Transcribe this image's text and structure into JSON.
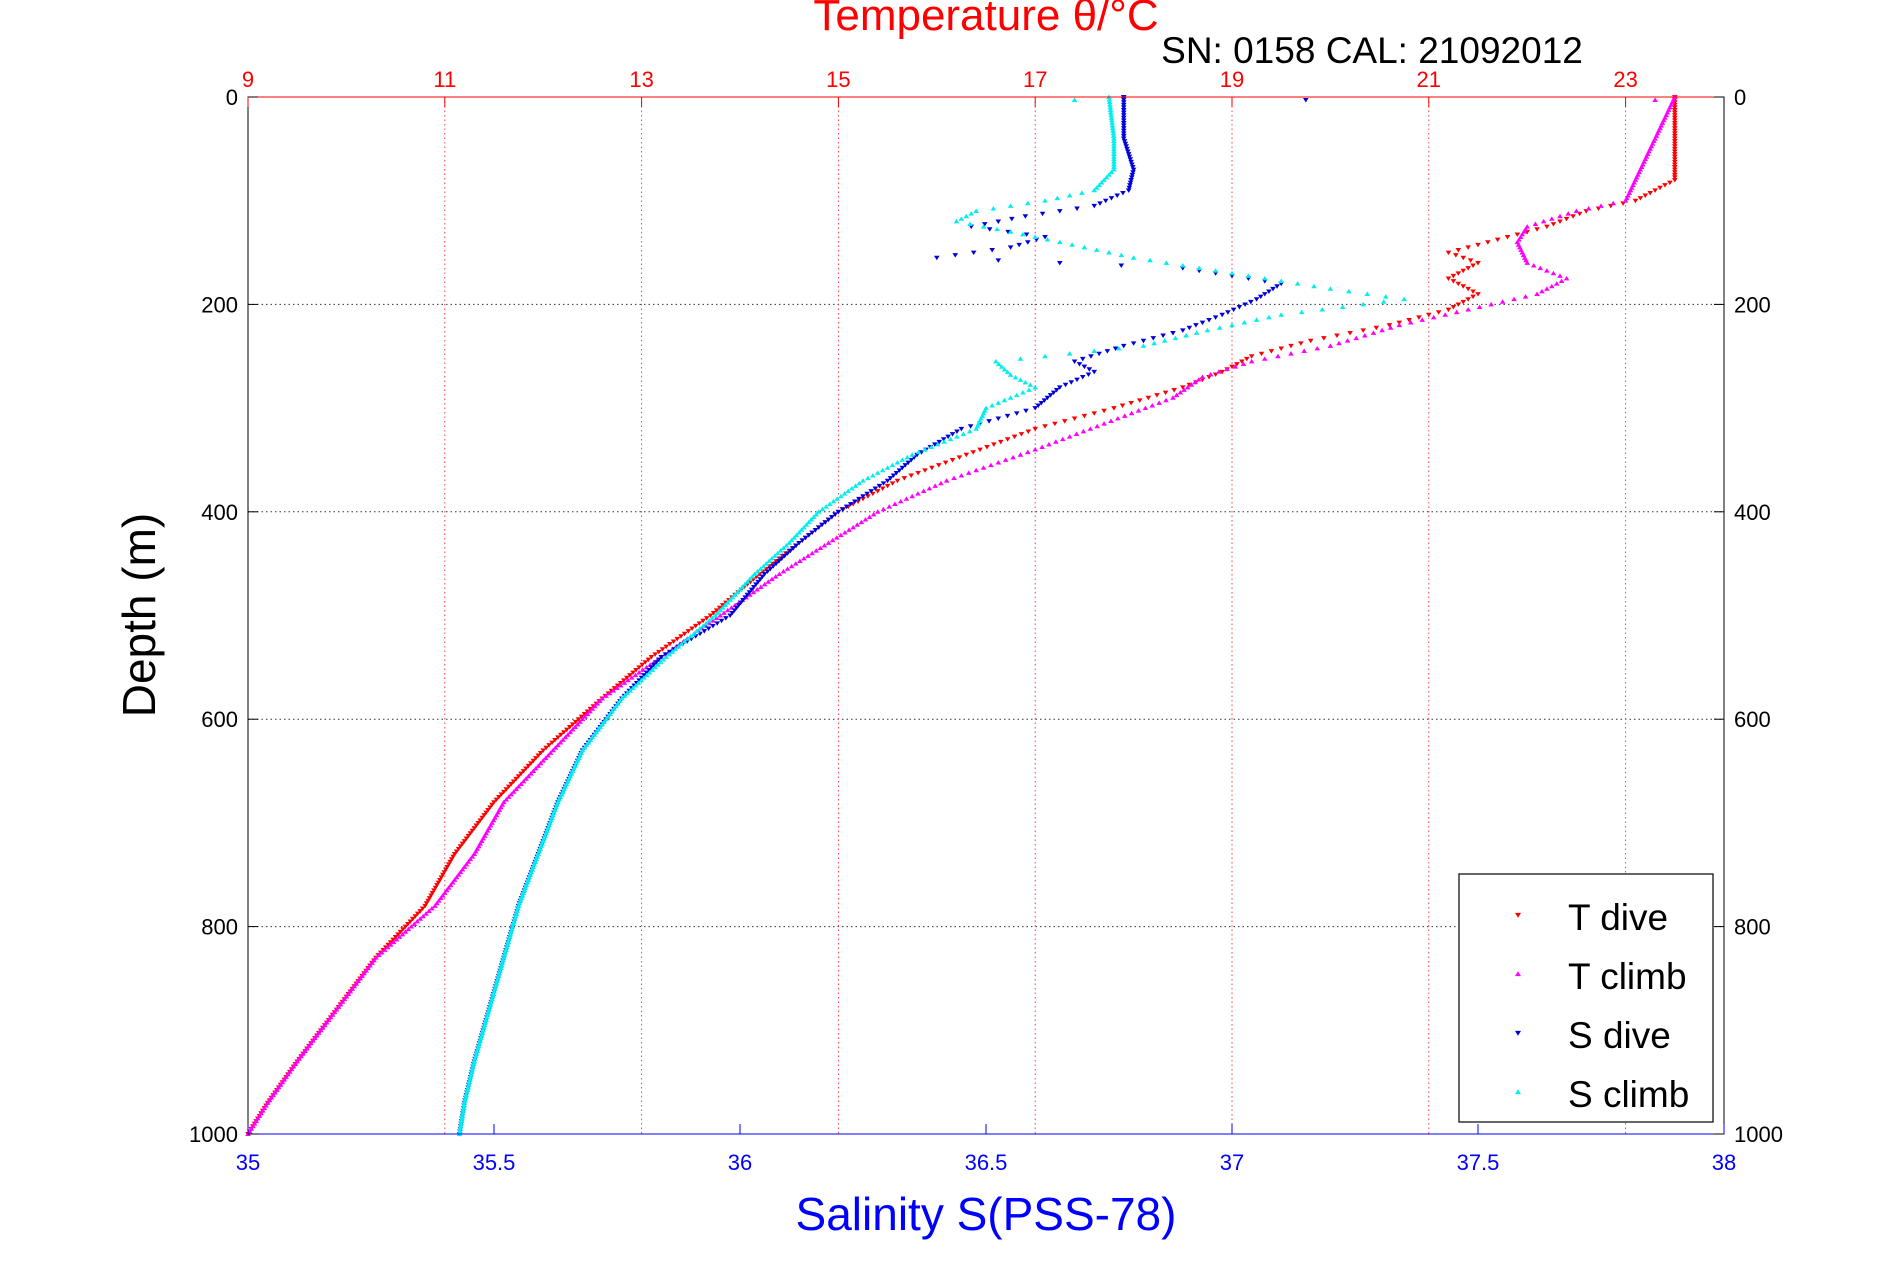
{
  "chart_data": {
    "type": "scatter",
    "title": "Temperature θ/°C",
    "subtitle": "SN: 0158  CAL: 21092012",
    "ylabel": "Depth (m)",
    "xlabel": "Salinity S(PSS-78)",
    "ylim": [
      0,
      1000
    ],
    "y_reversed": true,
    "xlim_salinity": [
      35,
      38
    ],
    "xlim_temperature": [
      9,
      24
    ],
    "grid": true,
    "legend_position": "bottom-right",
    "y_ticks": [
      "0",
      "200",
      "400",
      "600",
      "800",
      "1000"
    ],
    "y_tick_values": [
      0,
      200,
      400,
      600,
      800,
      1000
    ],
    "salinity_ticks": [
      "35",
      "35.5",
      "36",
      "36.5",
      "37",
      "37.5",
      "38"
    ],
    "salinity_tick_values": [
      35,
      35.5,
      36,
      36.5,
      37,
      37.5,
      38
    ],
    "temperature_ticks": [
      "9",
      "11",
      "13",
      "15",
      "17",
      "19",
      "21",
      "23"
    ],
    "temperature_tick_values": [
      9,
      11,
      13,
      15,
      17,
      19,
      21,
      23
    ],
    "colors": {
      "temperature_axis": "#ff0000",
      "salinity_axis": "#0000ff",
      "t_dive": "#ff0000",
      "t_climb": "#ff00ff",
      "s_dive": "#0000dd",
      "s_climb": "#00eeee",
      "grid": "#333333",
      "temp_grid": "#ff4040"
    },
    "series": [
      {
        "name": "T dive",
        "axis": "temperature",
        "marker": "down-triangle",
        "color": "#ff0000",
        "profile": [
          [
            0,
            23.5
          ],
          [
            50,
            23.5
          ],
          [
            80,
            23.5
          ],
          [
            100,
            23.1
          ],
          [
            110,
            22.6
          ],
          [
            125,
            22.2
          ],
          [
            140,
            21.6
          ],
          [
            150,
            21.2
          ],
          [
            160,
            21.5
          ],
          [
            175,
            21.2
          ],
          [
            190,
            21.5
          ],
          [
            205,
            21.2
          ],
          [
            220,
            20.6
          ],
          [
            235,
            19.8
          ],
          [
            250,
            19.2
          ],
          [
            265,
            18.9
          ],
          [
            280,
            18.5
          ],
          [
            300,
            17.8
          ],
          [
            320,
            17.0
          ],
          [
            345,
            16.3
          ],
          [
            370,
            15.6
          ],
          [
            400,
            15.0
          ],
          [
            430,
            14.6
          ],
          [
            460,
            14.2
          ],
          [
            500,
            13.7
          ],
          [
            540,
            13.1
          ],
          [
            580,
            12.6
          ],
          [
            630,
            12.0
          ],
          [
            680,
            11.5
          ],
          [
            730,
            11.1
          ],
          [
            780,
            10.8
          ],
          [
            830,
            10.3
          ],
          [
            880,
            9.9
          ],
          [
            930,
            9.5
          ],
          [
            970,
            9.2
          ],
          [
            1000,
            9.0
          ]
        ]
      },
      {
        "name": "T climb",
        "axis": "temperature",
        "marker": "up-triangle",
        "color": "#ff00ff",
        "profile": [
          [
            0,
            23.5
          ],
          [
            40,
            23.3
          ],
          [
            80,
            23.1
          ],
          [
            100,
            23.0
          ],
          [
            110,
            22.5
          ],
          [
            125,
            22.0
          ],
          [
            140,
            21.9
          ],
          [
            160,
            22.0
          ],
          [
            175,
            22.4
          ],
          [
            190,
            22.1
          ],
          [
            205,
            21.4
          ],
          [
            220,
            20.7
          ],
          [
            240,
            20.0
          ],
          [
            255,
            19.2
          ],
          [
            270,
            18.7
          ],
          [
            290,
            18.4
          ],
          [
            315,
            17.7
          ],
          [
            340,
            17.0
          ],
          [
            370,
            16.1
          ],
          [
            400,
            15.4
          ],
          [
            430,
            14.9
          ],
          [
            460,
            14.4
          ],
          [
            500,
            13.8
          ],
          [
            540,
            13.2
          ],
          [
            580,
            12.6
          ],
          [
            630,
            12.1
          ],
          [
            680,
            11.6
          ],
          [
            730,
            11.3
          ],
          [
            780,
            10.9
          ],
          [
            830,
            10.3
          ],
          [
            880,
            9.9
          ],
          [
            930,
            9.5
          ],
          [
            970,
            9.2
          ],
          [
            1000,
            9.0
          ]
        ]
      },
      {
        "name": "S dive",
        "axis": "salinity",
        "marker": "down-triangle",
        "color": "#0000dd",
        "profile": [
          [
            0,
            36.78
          ],
          [
            40,
            36.78
          ],
          [
            70,
            36.8
          ],
          [
            90,
            36.79
          ],
          [
            105,
            36.72
          ],
          [
            115,
            36.58
          ],
          [
            125,
            36.47
          ],
          [
            135,
            36.62
          ],
          [
            145,
            36.55
          ],
          [
            155,
            36.4
          ],
          [
            165,
            36.9
          ],
          [
            180,
            37.1
          ],
          [
            195,
            37.05
          ],
          [
            210,
            36.98
          ],
          [
            225,
            36.9
          ],
          [
            240,
            36.78
          ],
          [
            255,
            36.68
          ],
          [
            265,
            36.72
          ],
          [
            280,
            36.65
          ],
          [
            300,
            36.6
          ],
          [
            320,
            36.45
          ],
          [
            345,
            36.36
          ],
          [
            370,
            36.3
          ],
          [
            400,
            36.2
          ],
          [
            430,
            36.12
          ],
          [
            460,
            36.05
          ],
          [
            500,
            35.98
          ],
          [
            540,
            35.84
          ],
          [
            580,
            35.76
          ],
          [
            630,
            35.68
          ],
          [
            680,
            35.63
          ],
          [
            730,
            35.59
          ],
          [
            780,
            35.55
          ],
          [
            830,
            35.52
          ],
          [
            880,
            35.49
          ],
          [
            930,
            35.46
          ],
          [
            970,
            35.44
          ],
          [
            1000,
            35.43
          ]
        ]
      },
      {
        "name": "S climb",
        "axis": "salinity",
        "marker": "up-triangle",
        "color": "#00eeee",
        "profile": [
          [
            0,
            36.75
          ],
          [
            40,
            36.76
          ],
          [
            70,
            36.76
          ],
          [
            90,
            36.72
          ],
          [
            100,
            36.62
          ],
          [
            110,
            36.48
          ],
          [
            120,
            36.44
          ],
          [
            130,
            36.55
          ],
          [
            140,
            36.65
          ],
          [
            155,
            36.8
          ],
          [
            170,
            37.0
          ],
          [
            185,
            37.2
          ],
          [
            195,
            37.35
          ],
          [
            210,
            37.1
          ],
          [
            225,
            36.95
          ],
          [
            240,
            36.82
          ],
          [
            255,
            36.52
          ],
          [
            268,
            36.55
          ],
          [
            280,
            36.6
          ],
          [
            300,
            36.5
          ],
          [
            320,
            36.48
          ],
          [
            345,
            36.35
          ],
          [
            370,
            36.25
          ],
          [
            400,
            36.16
          ],
          [
            430,
            36.1
          ],
          [
            460,
            36.03
          ],
          [
            500,
            35.95
          ],
          [
            540,
            35.85
          ],
          [
            580,
            35.76
          ],
          [
            630,
            35.68
          ],
          [
            680,
            35.63
          ],
          [
            730,
            35.59
          ],
          [
            780,
            35.55
          ],
          [
            830,
            35.52
          ],
          [
            880,
            35.49
          ],
          [
            930,
            35.46
          ],
          [
            970,
            35.44
          ],
          [
            1000,
            35.43
          ]
        ]
      }
    ],
    "outliers": [
      {
        "series": "S climb",
        "x": 36.68,
        "y": 0
      },
      {
        "series": "S dive",
        "x": 37.15,
        "y": 0
      },
      {
        "series": "T climb",
        "x": 23.3,
        "y": 0
      }
    ]
  }
}
